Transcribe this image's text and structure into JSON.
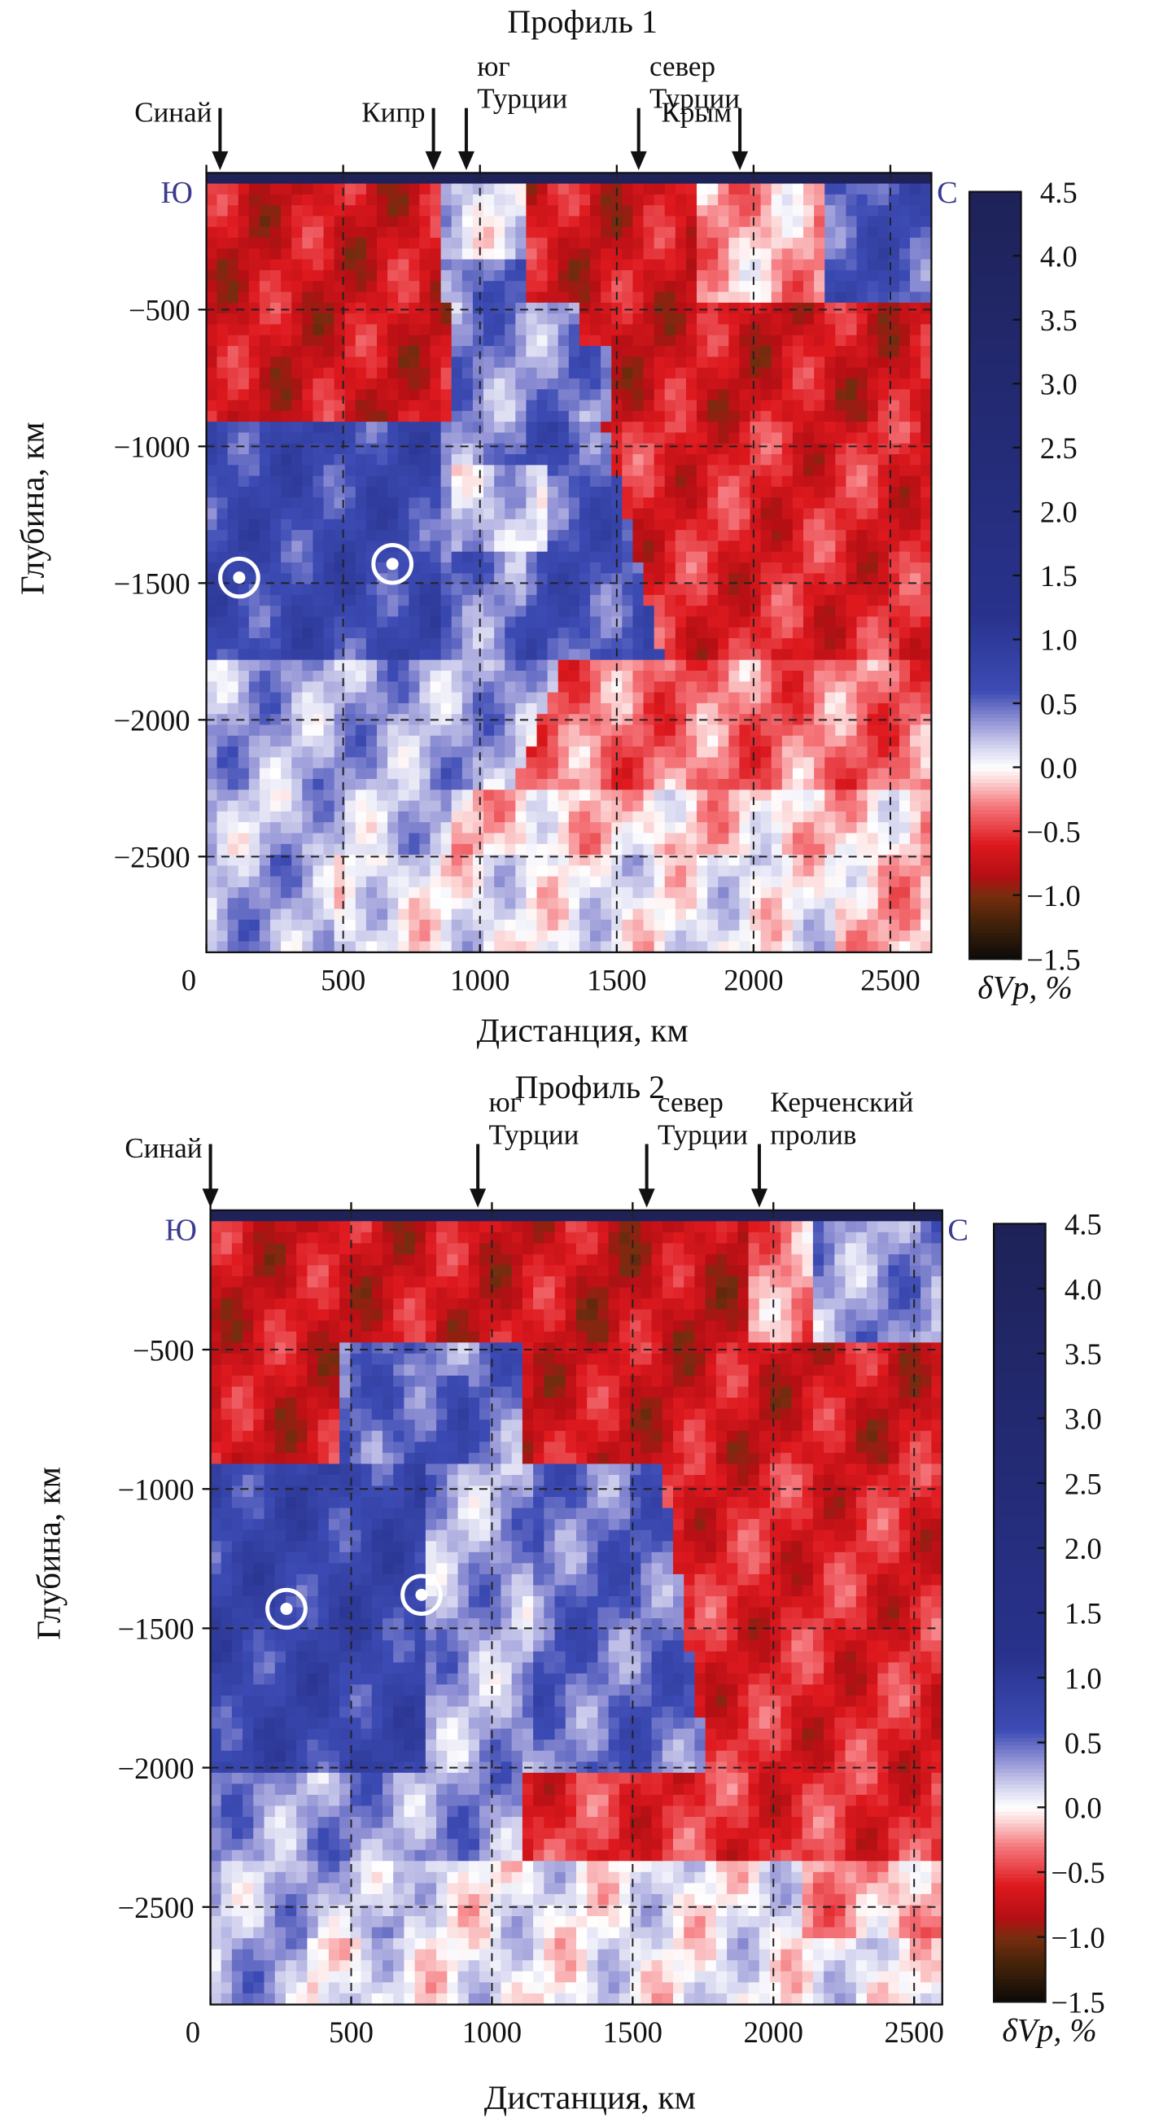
{
  "chart_data": [
    {
      "type": "heatmap",
      "title": "Профиль 1",
      "xlabel": "Дистанция, км",
      "ylabel": "Глубина, км",
      "xlim": [
        0,
        2650
      ],
      "ylim": [
        -2850,
        0
      ],
      "xticks": [
        0,
        500,
        1000,
        1500,
        2000,
        2500
      ],
      "yticks": [
        -500,
        -1000,
        -1500,
        -2000,
        -2500
      ],
      "grid": true,
      "left_end": "Ю",
      "right_end": "С",
      "colorbar": {
        "label": "δVр, %",
        "ticks": [
          4.5,
          4.0,
          3.5,
          3.0,
          2.5,
          2.0,
          1.5,
          1.0,
          0.5,
          0.0,
          -0.5,
          -1.0,
          -1.5
        ]
      },
      "arrows": [
        {
          "lines": [
            "Синай"
          ],
          "x": 50
        },
        {
          "lines": [
            "Кипр"
          ],
          "x": 830
        },
        {
          "lines": [
            "юг",
            "Турции"
          ],
          "x": 950
        },
        {
          "lines": [
            "север",
            "Турции"
          ],
          "x": 1580
        },
        {
          "lines": [
            "Крым"
          ],
          "x": 1950
        }
      ],
      "markers": [
        {
          "x": 120,
          "y": -1480
        },
        {
          "x": 680,
          "y": -1430
        }
      ]
    },
    {
      "type": "heatmap",
      "title": "Профиль 2",
      "xlabel": "Дистанция, км",
      "ylabel": "Глубина, км",
      "xlim": [
        0,
        2600
      ],
      "ylim": [
        -2850,
        0
      ],
      "xticks": [
        0,
        500,
        1000,
        1500,
        2000,
        2500
      ],
      "yticks": [
        -500,
        -1000,
        -1500,
        -2000,
        -2500
      ],
      "grid": true,
      "left_end": "Ю",
      "right_end": "С",
      "colorbar": {
        "label": "δVр, %",
        "ticks": [
          4.5,
          4.0,
          3.5,
          3.0,
          2.5,
          2.0,
          1.5,
          1.0,
          0.5,
          0.0,
          -0.5,
          -1.0,
          -1.5
        ]
      },
      "arrows": [
        {
          "lines": [
            "Синай"
          ],
          "x": 0
        },
        {
          "lines": [
            "юг",
            "Турции"
          ],
          "x": 950
        },
        {
          "lines": [
            "север",
            "Турции"
          ],
          "x": 1550
        },
        {
          "lines": [
            "Керченский",
            "пролив"
          ],
          "x": 1950
        }
      ],
      "markers": [
        {
          "x": 270,
          "y": -1430
        },
        {
          "x": 750,
          "y": -1380
        }
      ]
    }
  ]
}
